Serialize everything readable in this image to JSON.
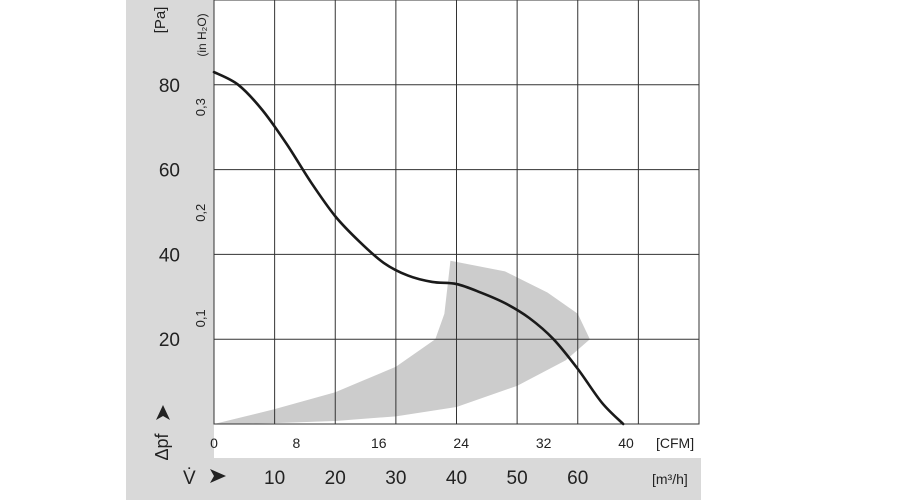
{
  "chart_data": {
    "type": "line",
    "x_cfm_ticks": [
      "0",
      "8",
      "16",
      "24",
      "32",
      "40"
    ],
    "x_cfm_unit": "[CFM]",
    "x_m3h_ticks": [
      "10",
      "20",
      "30",
      "40",
      "50",
      "60"
    ],
    "x_m3h_unit": "[m³/h]",
    "x_symbol": "V̇",
    "y_pa_ticks": [
      "20",
      "40",
      "60",
      "80"
    ],
    "y_pa_unit": "[Pa]",
    "y_inh2o_ticks": [
      "0,1",
      "0,2",
      "0,3"
    ],
    "y_inh2o_unit": "(in H₂O)",
    "y_symbol": "Δpf",
    "xlim_m3h": [
      0,
      80
    ],
    "ylim_pa": [
      0,
      100
    ],
    "grid": true,
    "series": [
      {
        "x_m3h": [
          0,
          4,
          8,
          12,
          16,
          20,
          24,
          28,
          32,
          36,
          40,
          44,
          48,
          52,
          56,
          60,
          64,
          67.5
        ],
        "y_pa": [
          83,
          80,
          74,
          66,
          57,
          49,
          43,
          38,
          35,
          33.5,
          33,
          31,
          28.5,
          25,
          20,
          13,
          5,
          0
        ]
      }
    ],
    "operating_range": {
      "upper_x_m3h": [
        0,
        10,
        20,
        30,
        36.5,
        38,
        39,
        48,
        55,
        60,
        62
      ],
      "upper_y_pa": [
        0,
        3.5,
        7.5,
        13.5,
        20,
        26,
        38.5,
        36,
        31,
        26,
        20
      ],
      "lower_x_m3h": [
        62,
        58,
        50,
        40,
        30,
        20,
        10,
        0
      ],
      "lower_y_pa": [
        20,
        15,
        9,
        4,
        1.8,
        0.7,
        0.2,
        0
      ]
    }
  },
  "colors": {
    "curve": "#1a1a1a",
    "grid": "#333333",
    "range_fill": "#cccccc",
    "panel": "#d9d9d9"
  }
}
